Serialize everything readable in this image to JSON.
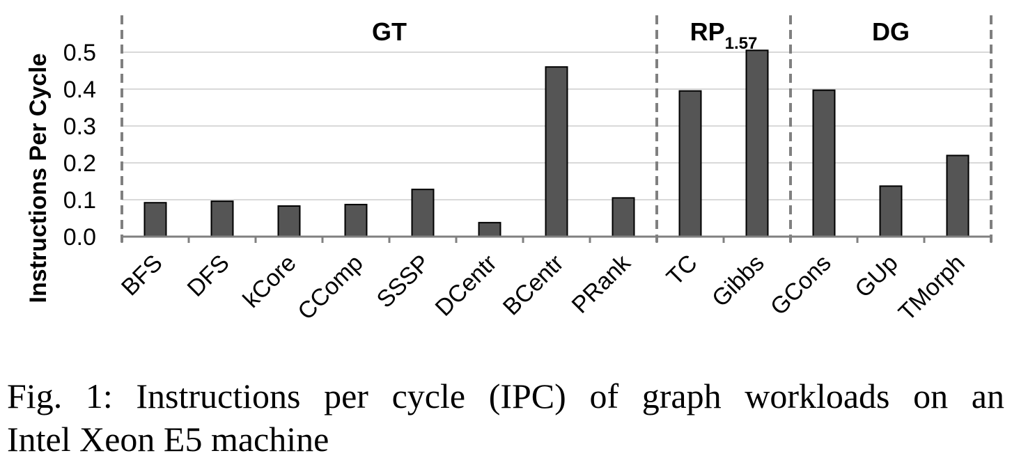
{
  "chart_data": {
    "type": "bar",
    "title": "",
    "xlabel": "",
    "ylabel": "Instructions Per Cycle",
    "ylim": [
      0,
      0.55
    ],
    "yticks": [
      "0.0",
      "0.1",
      "0.2",
      "0.3",
      "0.4",
      "0.5"
    ],
    "grid": true,
    "bar_color": "#555555",
    "categories": [
      "BFS",
      "DFS",
      "kCore",
      "CComp",
      "SSSP",
      "DCentr",
      "BCentr",
      "PRank",
      "TC",
      "Gibbs",
      "GCons",
      "GUp",
      "TMorph"
    ],
    "values": [
      0.092,
      0.096,
      0.083,
      0.087,
      0.128,
      0.038,
      0.46,
      0.105,
      0.395,
      0.505,
      0.397,
      0.137,
      0.22
    ],
    "groups": [
      {
        "name": "GT",
        "sub": "",
        "count": 8
      },
      {
        "name": "RP",
        "sub": "1.57",
        "count": 2
      },
      {
        "name": "DG",
        "sub": "",
        "count": 3
      }
    ]
  },
  "caption": {
    "line1": "Fig. 1: Instructions per cycle (IPC) of graph workloads on an",
    "line2": "Intel Xeon E5 machine"
  }
}
